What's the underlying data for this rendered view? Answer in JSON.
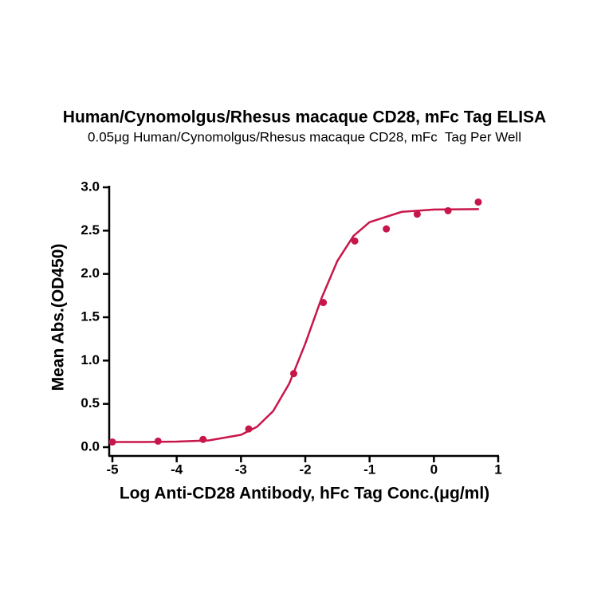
{
  "chart_data": {
    "type": "scatter",
    "title": "Human/Cynomolgus/Rhesus macaque CD28, mFc Tag ELISA",
    "subtitle": "0.05μg Human/Cynomolgus/Rhesus macaque CD28, mFc  Tag Per Well",
    "x_label": "Log Anti-CD28 Antibody, hFc Tag Conc.(μg/ml)",
    "y_label": "Mean Abs.(OD450)",
    "xlim": [
      -5,
      1
    ],
    "ylim": [
      0,
      3
    ],
    "xticks": [
      -5,
      -4,
      -3,
      -2,
      -1,
      0,
      1
    ],
    "yticks": [
      {
        "value": 0,
        "label": "0.0"
      },
      0.5,
      {
        "value": 1,
        "label": "1.0"
      },
      1.5,
      {
        "value": 2,
        "label": "2.0"
      },
      2.5,
      {
        "value": 3,
        "label": "3.0"
      }
    ],
    "series": [
      {
        "style": "markers",
        "color": "#c8164a",
        "x": [
          -5.0,
          -4.29,
          -3.59,
          -2.88,
          -2.18,
          -1.72,
          -1.23,
          -0.74,
          -0.26,
          0.22,
          0.69
        ],
        "values": [
          0.06,
          0.07,
          0.09,
          0.21,
          0.85,
          1.67,
          2.38,
          2.52,
          2.69,
          2.73,
          2.83
        ]
      },
      {
        "style": "line",
        "color": "#c8164a",
        "x": [
          -5,
          -4.5,
          -4,
          -3.5,
          -3,
          -2.75,
          -2.5,
          -2.25,
          -2,
          -1.75,
          -1.5,
          -1.25,
          -1,
          -0.5,
          0,
          0.7
        ],
        "values": [
          0.06,
          0.06,
          0.064,
          0.078,
          0.143,
          0.236,
          0.416,
          0.734,
          1.196,
          1.715,
          2.152,
          2.439,
          2.598,
          2.717,
          2.743,
          2.748
        ]
      }
    ]
  }
}
